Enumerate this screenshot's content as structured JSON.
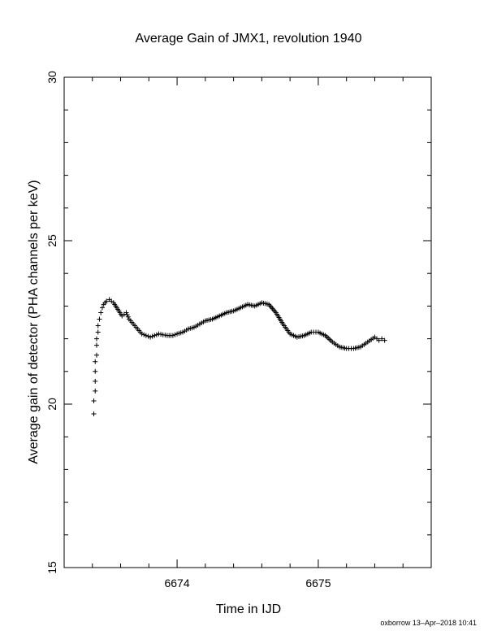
{
  "chart_data": {
    "type": "scatter",
    "title": "Average Gain of JMX1, revolution 1940",
    "xlabel": "Time in IJD",
    "ylabel": "Average gain of detector (PHA channels per keV)",
    "xlim": [
      6673.2,
      6675.8
    ],
    "ylim": [
      15,
      30
    ],
    "xticks_major": [
      6674,
      6675
    ],
    "xtick_labels": [
      "6674",
      "6675"
    ],
    "yticks_major": [
      15,
      20,
      25,
      30
    ],
    "ytick_labels": [
      "15",
      "20",
      "25",
      "30"
    ],
    "grid": false,
    "marker": "+",
    "color": "#000000",
    "footer": "oxborrow 13–Apr–2018 10:41",
    "x": [
      6673.41,
      6673.41,
      6673.42,
      6673.42,
      6673.42,
      6673.42,
      6673.43,
      6673.43,
      6673.43,
      6673.44,
      6673.44,
      6673.45,
      6673.46,
      6673.47,
      6673.48,
      6673.5,
      6673.52,
      6673.55,
      6673.58,
      6673.61,
      6673.64,
      6673.66,
      6673.69,
      6673.72,
      6673.75,
      6673.78,
      6673.81,
      6673.84,
      6673.87,
      6673.9,
      6673.93,
      6673.97,
      6674.0,
      6674.04,
      6674.08,
      6674.12,
      6674.16,
      6674.2,
      6674.25,
      6674.3,
      6674.35,
      6674.4,
      6674.45,
      6674.5,
      6674.55,
      6674.6,
      6674.65,
      6674.7,
      6674.75,
      6674.8,
      6674.85,
      6674.9,
      6674.95,
      6675.0,
      6675.05,
      6675.1,
      6675.15,
      6675.2,
      6675.25,
      6675.3,
      6675.35,
      6675.4,
      6675.43,
      6675.45,
      6675.47
    ],
    "y": [
      19.7,
      20.1,
      20.4,
      20.7,
      21.0,
      21.3,
      21.5,
      21.8,
      22.0,
      22.2,
      22.4,
      22.6,
      22.8,
      22.95,
      23.05,
      23.15,
      23.2,
      23.1,
      22.9,
      22.7,
      22.8,
      22.6,
      22.45,
      22.3,
      22.15,
      22.1,
      22.05,
      22.1,
      22.15,
      22.12,
      22.1,
      22.1,
      22.15,
      22.2,
      22.3,
      22.35,
      22.45,
      22.55,
      22.6,
      22.7,
      22.8,
      22.85,
      22.95,
      23.05,
      23.0,
      23.1,
      23.05,
      22.8,
      22.45,
      22.15,
      22.05,
      22.1,
      22.2,
      22.2,
      22.1,
      21.9,
      21.75,
      21.7,
      21.7,
      21.75,
      21.9,
      22.05,
      21.95,
      22.0,
      21.95
    ]
  }
}
